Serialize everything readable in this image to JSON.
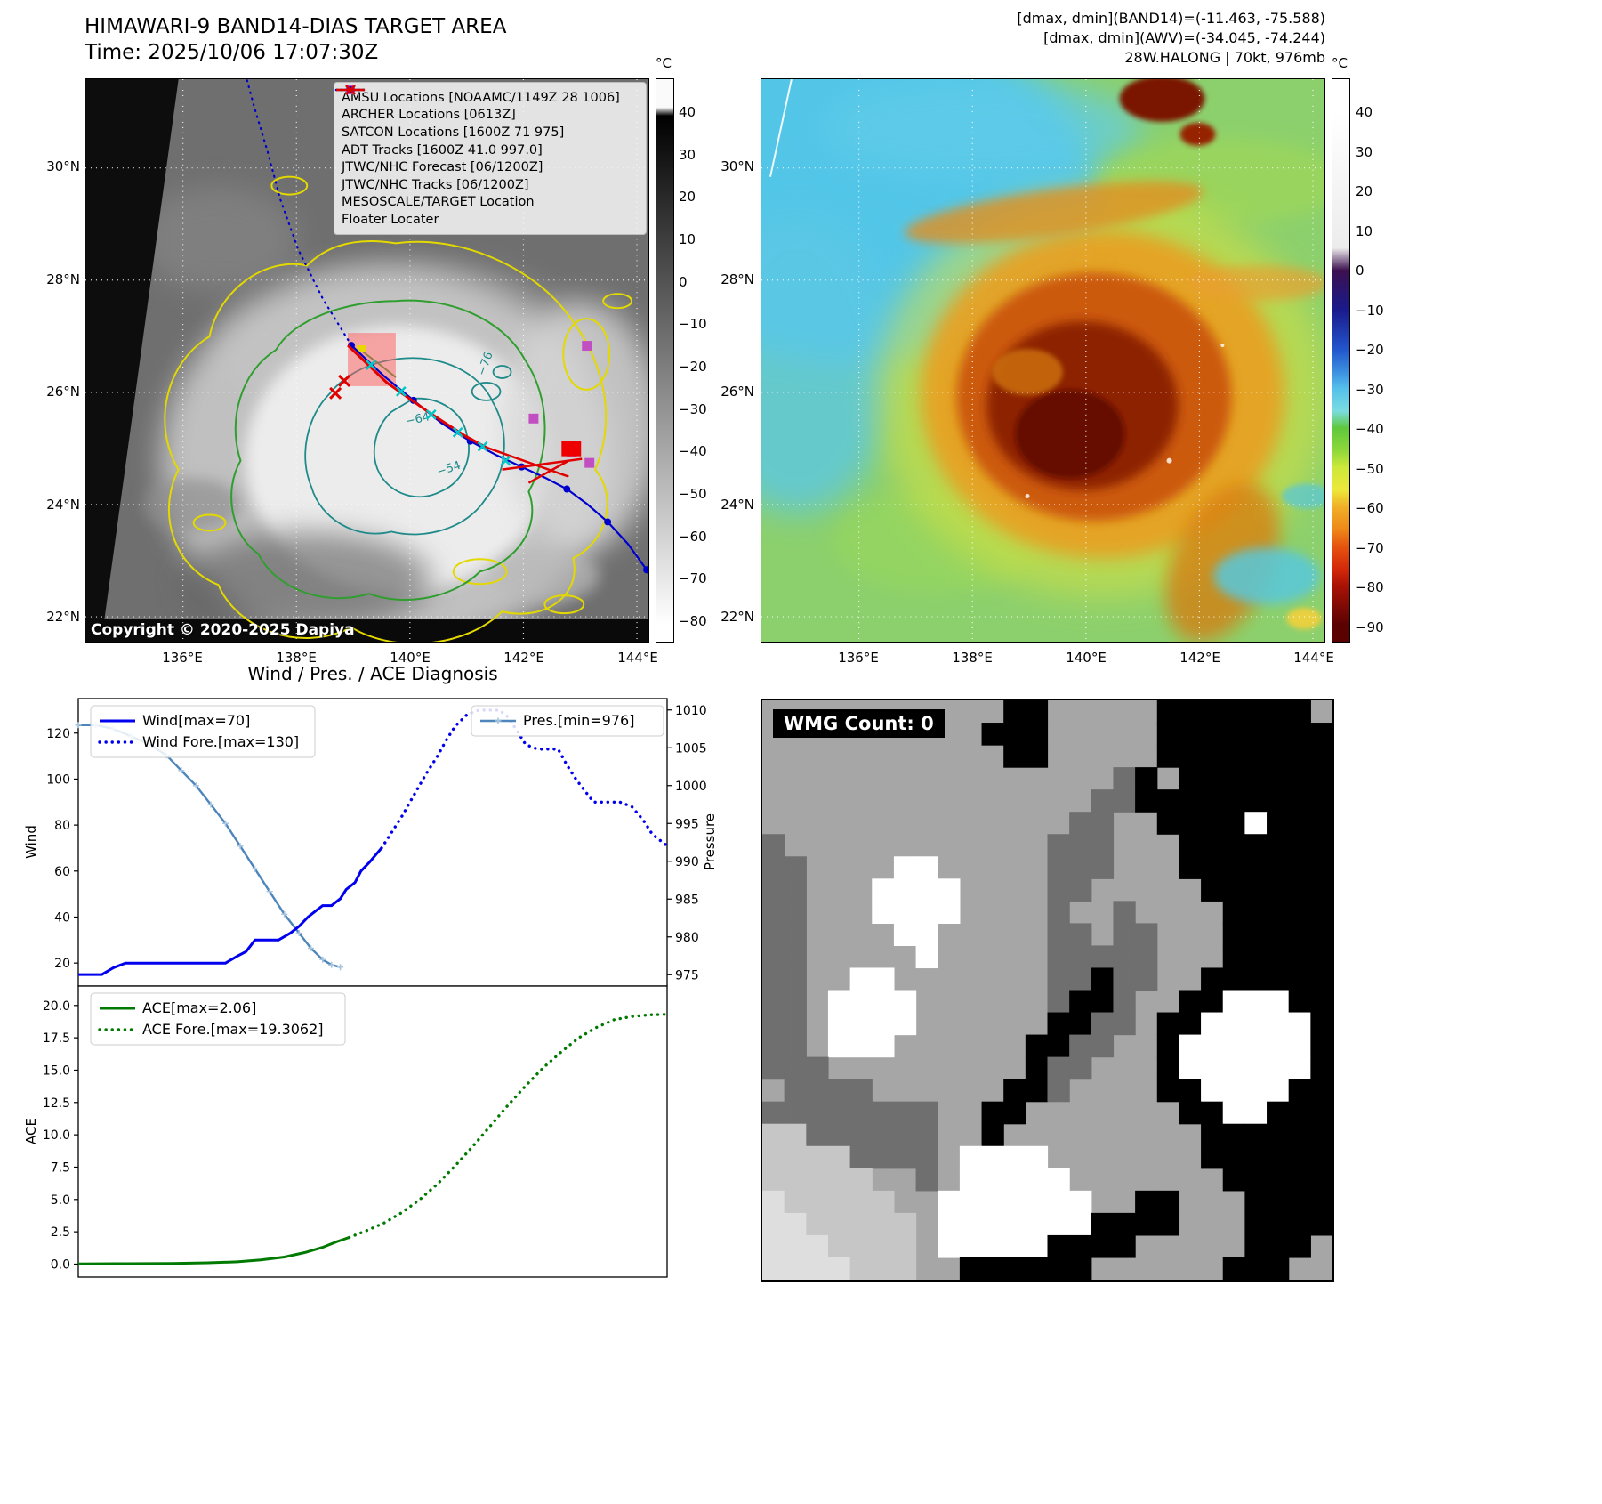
{
  "band14_panel": {
    "title": "HIMAWARI-9 BAND14-DIAS TARGET AREA",
    "time": "Time: 2025/10/06 17:07:30Z",
    "copyright": "Copyright © 2020-2025 Dapiya",
    "colorbar_unit": "°C",
    "colorbar_ticks": [
      "40",
      "30",
      "20",
      "10",
      "0",
      "−10",
      "−20",
      "−30",
      "−40",
      "−50",
      "−60",
      "−70",
      "−80"
    ],
    "contour_labels": [
      "−76",
      "−64",
      "−54"
    ],
    "legend": [
      {
        "label": "AMSU Locations [NOAAMC/1149Z 28 1006]",
        "marker": "square",
        "color": "#c24fc2"
      },
      {
        "label": "ARCHER Locations [0613Z]",
        "marker": "square",
        "color": "#c24fc2"
      },
      {
        "label": "SATCON Locations [1600Z 71 975]",
        "marker": "x",
        "color": "#00bcbc"
      },
      {
        "label": "ADT Tracks [1600Z 41.0 997.0]",
        "marker": "line",
        "color": "#1e7d1e"
      },
      {
        "label": "JTWC/NHC Forecast [06/1200Z]",
        "marker": "dotted",
        "color": "#0000dd"
      },
      {
        "label": "JTWC/NHC Tracks [06/1200Z]",
        "marker": "line-dot",
        "color": "#0000dd"
      },
      {
        "label": "MESOSCALE/TARGET Location",
        "marker": "x",
        "color": "#dd0000"
      },
      {
        "label": "Floater Locater",
        "marker": "line",
        "color": "#dd0000"
      }
    ]
  },
  "awv_panel": {
    "header_lines": [
      "[dmax, dmin](BAND14)=(-11.463, -75.588)",
      "[dmax, dmin](AWV)=(-34.045, -74.244)",
      "28W.HALONG | 70kt, 976mb"
    ],
    "colorbar_unit": "°C",
    "colorbar_ticks": [
      "40",
      "30",
      "20",
      "10",
      "0",
      "−10",
      "−20",
      "−30",
      "−40",
      "−50",
      "−60",
      "−70",
      "−80",
      "−90"
    ]
  },
  "map_ticks": {
    "lat": [
      "30°N",
      "28°N",
      "26°N",
      "24°N",
      "22°N"
    ],
    "lon": [
      "136°E",
      "138°E",
      "140°E",
      "142°E",
      "144°E"
    ]
  },
  "wmg_panel": {
    "label": "WMG Count: 0",
    "palette": {
      "K": "#000000",
      "D": "#6f6f6f",
      "G": "#a6a6a6",
      "L": "#c6c6c6",
      "W": "#ffffff",
      "E": "#dedede"
    },
    "grid": [
      "GGGGGGGGGGGKKGGGGGKKKKKKKG",
      "GGGGGGGGGGKKKGGGGGKKKKKKKK",
      "GGGGGGGGGGGKKGGGGGKKKKKKKK",
      "GGGGGGGGGGGGGGGGDKGKKKKKKK",
      "GGGGGGGGGGGGGGGDDKKKKKKKKK",
      "GGGGGGGGGGGGGGDDGGKKKKWKKK",
      "DGGGGGGGGGGGGDDDGGGKKKKKKK",
      "DDGGGGWWGGGGGDDDGGGKKKKKKK",
      "DDGGGWWWWGGGGDDGGGGGKKKKKK",
      "DDGGGWWWWGGGGDGGDGGGGKKKKK",
      "DDGGGGWWGGGGGDDGDDGGGKKKKK",
      "DDGGGGGWGGGGGDDDDDGGGKKKKK",
      "DDGGWWGGGGGGGDDKDDGGKKKKKK",
      "DDGWWWWGGGGGGDKKDGGKKWWWKK",
      "DDGWWWWGGGGGGKKDDGKKWWWWWK",
      "DDGWWWGGGGGGKKDDGGKWWWWWWK",
      "DDDGGGGGGGGGKDDGGGKWWWWWWK",
      "GDDDDGGGGGGKKDGGGGKKWWWWKK",
      "DDDDDDDDGGKKGGGGGGGKKWWKKK",
      "LLDDDDDDGGKGGGGGGGGGKKKKKK",
      "LLLLDDDDGWWWWGGGGGGGKKKKKK",
      "LLLLLGGDGWWWWWGGGGGGGKKKKK",
      "ELLLLLGGWWWWWWWGGKKGGGKKKK",
      "EELLLLLGWWWWWWWKKKKGGGKKKK",
      "EEELLLLGWWWWWKKKKGGGGGKKKG",
      "EEEELLLGGKKKKKKGGGGGGKKKGG"
    ]
  },
  "chart_data": [
    {
      "type": "line",
      "title": "Wind / Pres. / ACE Diagnosis",
      "ylabel_left": "Wind",
      "ylabel_right": "Pressure",
      "x_range": [
        0,
        1
      ],
      "y_left_range": [
        10,
        135
      ],
      "y_right_range": [
        973.5,
        1011.5
      ],
      "y_left_ticks": [
        20,
        40,
        60,
        80,
        100,
        120
      ],
      "y_right_ticks": [
        975,
        980,
        985,
        990,
        995,
        1000,
        1005,
        1010
      ],
      "grid": false,
      "legend_left_pos": "upper left",
      "legend_right_pos": "upper right",
      "series": [
        {
          "name": "Wind[max=70]",
          "axis": "left",
          "style": "solid",
          "color": "#0000ee",
          "x": [
            0,
            0.04,
            0.06,
            0.08,
            0.25,
            0.27,
            0.285,
            0.3,
            0.34,
            0.36,
            0.375,
            0.39,
            0.405,
            0.415,
            0.43,
            0.445,
            0.455,
            0.47,
            0.48,
            0.495,
            0.505,
            0.515
          ],
          "y": [
            15,
            15,
            18,
            20,
            20,
            23,
            25,
            30,
            30,
            33,
            36,
            40,
            43,
            45,
            45,
            48,
            52,
            55,
            60,
            64,
            67,
            70
          ]
        },
        {
          "name": "Wind Fore.[max=130]",
          "axis": "left",
          "style": "dotted",
          "color": "#0000ee",
          "x": [
            0.515,
            0.53,
            0.55,
            0.57,
            0.59,
            0.61,
            0.625,
            0.64,
            0.66,
            0.68,
            0.7,
            0.715,
            0.73,
            0.745,
            0.76,
            0.78,
            0.8,
            0.815,
            0.83,
            0.845,
            0.86,
            0.875,
            0.89,
            0.905,
            0.92,
            0.94,
            0.96,
            0.975,
            1.0
          ],
          "y": [
            70,
            76,
            84,
            93,
            102,
            110,
            117,
            123,
            128,
            130,
            130,
            130,
            127,
            121,
            115,
            113,
            113,
            113,
            106,
            100,
            95,
            90,
            90,
            90,
            90,
            88,
            82,
            76,
            71
          ]
        },
        {
          "name": "Pres.[min=976]",
          "axis": "right",
          "style": "solid-marker",
          "color": "#4e86bb",
          "marker_color": "#a9c6e0",
          "x": [
            0,
            0.03,
            0.06,
            0.09,
            0.12,
            0.15,
            0.175,
            0.2,
            0.225,
            0.25,
            0.275,
            0.3,
            0.325,
            0.35,
            0.375,
            0.395,
            0.415,
            0.43,
            0.445
          ],
          "y": [
            1008,
            1008,
            1007.5,
            1006.5,
            1005.5,
            1004,
            1002,
            1000,
            997.5,
            995,
            992,
            989,
            986,
            983,
            980.5,
            978.5,
            977,
            976.3,
            976
          ]
        }
      ]
    },
    {
      "type": "line",
      "title": "",
      "ylabel_left": "ACE",
      "x_range": [
        0,
        1
      ],
      "y_left_range": [
        -1.0,
        21.5
      ],
      "y_left_ticks": [
        0,
        2.5,
        5,
        7.5,
        10,
        12.5,
        15,
        17.5,
        20
      ],
      "y_left_tick_labels": [
        "0.0",
        "2.5",
        "5.0",
        "7.5",
        "10.0",
        "12.5",
        "15.0",
        "17.5",
        "20.0"
      ],
      "grid": false,
      "series": [
        {
          "name": "ACE[max=2.06]",
          "axis": "left",
          "style": "solid",
          "color": "#007a00",
          "x": [
            0,
            0.08,
            0.16,
            0.22,
            0.27,
            0.31,
            0.35,
            0.385,
            0.415,
            0.44,
            0.46
          ],
          "y": [
            0.02,
            0.03,
            0.05,
            0.1,
            0.18,
            0.32,
            0.55,
            0.9,
            1.3,
            1.75,
            2.06
          ]
        },
        {
          "name": "ACE Fore.[max=19.3062]",
          "axis": "left",
          "style": "dotted",
          "color": "#007a00",
          "x": [
            0.46,
            0.49,
            0.52,
            0.55,
            0.58,
            0.61,
            0.64,
            0.67,
            0.7,
            0.73,
            0.76,
            0.79,
            0.82,
            0.85,
            0.88,
            0.91,
            0.94,
            0.97,
            1.0
          ],
          "y": [
            2.06,
            2.6,
            3.2,
            4.0,
            5.0,
            6.2,
            7.6,
            9.1,
            10.7,
            12.3,
            13.8,
            15.2,
            16.4,
            17.5,
            18.3,
            18.9,
            19.15,
            19.28,
            19.31
          ]
        }
      ]
    }
  ]
}
